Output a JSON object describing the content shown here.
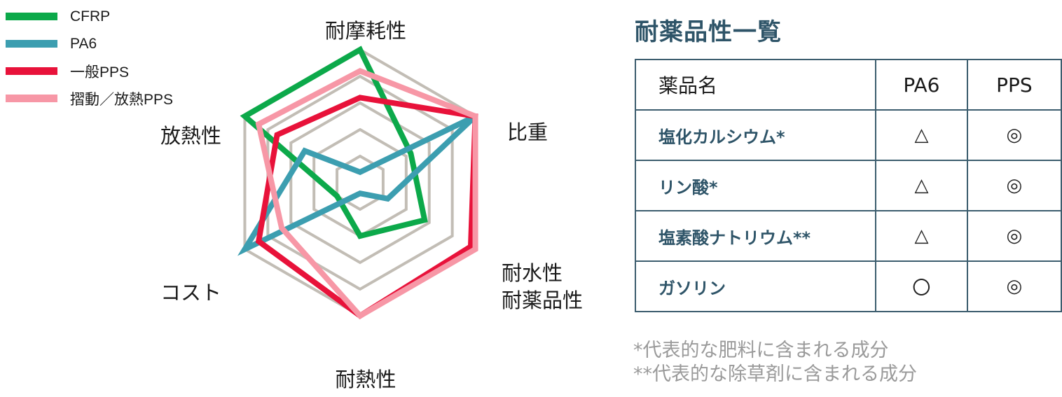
{
  "chart_data": {
    "type": "radar",
    "axes": [
      "耐摩耗性",
      "比重",
      "耐水性\n耐薬品性",
      "耐熱性",
      "コスト",
      "放熱性"
    ],
    "levels": 5,
    "max": 5,
    "grid": true,
    "legend_position": "top-left",
    "series": [
      {
        "name": "CFRP",
        "color": "#0ca94a",
        "values": [
          5,
          2.2,
          2.8,
          2,
          1,
          5
        ]
      },
      {
        "name": "PA6",
        "color": "#3c9eb0",
        "values": [
          0.4,
          5,
          1.2,
          0.4,
          5,
          2.4
        ]
      },
      {
        "name": "一般PPS",
        "color": "#e8123a",
        "values": [
          3.2,
          5,
          4.8,
          5,
          4.4,
          3.6
        ]
      },
      {
        "name": "摺動／放熱PPS",
        "color": "#f797a6",
        "values": [
          4.2,
          5,
          5,
          5,
          3.4,
          4.4
        ]
      }
    ]
  },
  "table": {
    "title": "耐薬品性一覧",
    "headers": [
      "薬品名",
      "PA6",
      "PPS"
    ],
    "rows": [
      {
        "name": "塩化カルシウム*",
        "pa6": "△",
        "pps": "◎"
      },
      {
        "name": "リン酸*",
        "pa6": "△",
        "pps": "◎"
      },
      {
        "name": "塩素酸ナトリウム**",
        "pa6": "△",
        "pps": "◎"
      },
      {
        "name": "ガソリン",
        "pa6": "〇",
        "pps": "◎"
      }
    ],
    "border_color": "#3c5d6e",
    "name_color": "#2e5468"
  },
  "footnotes": [
    "*代表的な肥料に含まれる成分",
    "**代表的な除草剤に含まれる成分"
  ],
  "grid_color": "#c2bdb5"
}
